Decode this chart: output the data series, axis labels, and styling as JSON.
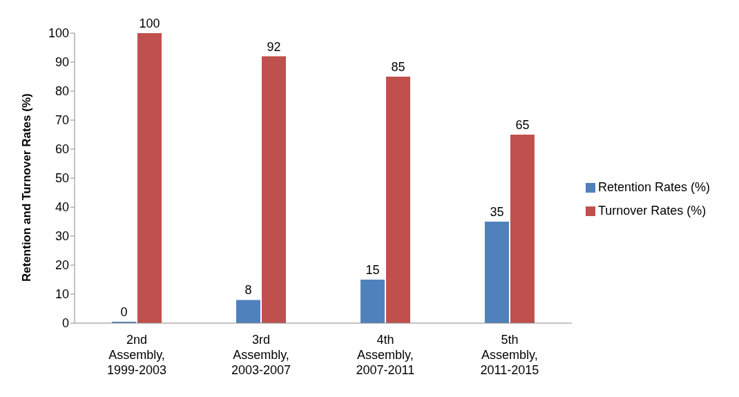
{
  "chart_data": {
    "type": "bar",
    "ylabel": "Retention and Turnover Rates (%)",
    "categories": [
      "2nd Assembly, 1999-2003",
      "3rd Assembly, 2003-2007",
      "4th Assembly, 2007-2011",
      "5th Assembly, 2011-2015"
    ],
    "series": [
      {
        "name": "Retention Rates (%)",
        "color": "#4f81bd",
        "values": [
          0,
          8,
          15,
          35
        ]
      },
      {
        "name": "Turnover Rates (%)",
        "color": "#c0504d",
        "values": [
          100,
          92,
          85,
          65
        ]
      }
    ],
    "ylim": [
      0,
      100
    ],
    "yticks": [
      0,
      10,
      20,
      30,
      40,
      50,
      60,
      70,
      80,
      90,
      100
    ],
    "legend": "right",
    "data_labels": true
  }
}
